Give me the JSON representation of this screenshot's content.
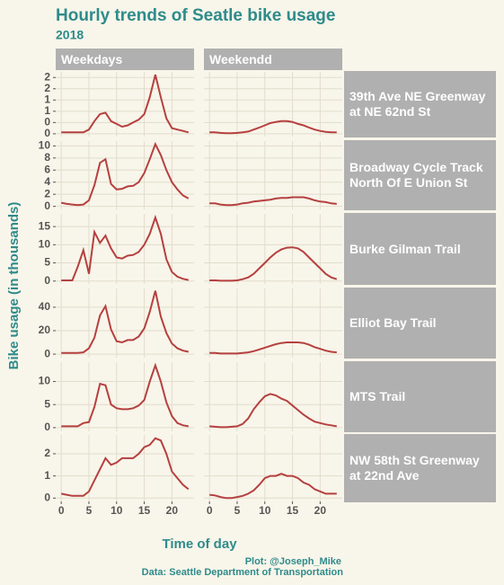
{
  "chart_data": {
    "type": "line",
    "title": "Hourly trends of Seatle bike usage",
    "subtitle": "2018",
    "xlabel": "Time of day",
    "ylabel": "Bike usage (in thousands)",
    "caption": [
      "Plot: @Joseph_Mike",
      "Data: Seattle Department of Transportation"
    ],
    "columns": [
      "Weekdays",
      "Weekendd"
    ],
    "x": [
      0,
      1,
      2,
      3,
      4,
      5,
      6,
      7,
      8,
      9,
      10,
      11,
      12,
      13,
      14,
      15,
      16,
      17,
      18,
      19,
      20,
      21,
      22,
      23
    ],
    "xlim": [
      -1,
      24
    ],
    "xticks": [
      0,
      5,
      10,
      15,
      20
    ],
    "color": "#b5403f",
    "grid": true,
    "rows": [
      {
        "name": "39th Ave NE Greenway at NE 62nd St",
        "ylim": [
          -0.1,
          2.2
        ],
        "yticks": [
          0,
          {
            "value": 0.4,
            "label": "0"
          },
          {
            "value": 0.8,
            "label": "1"
          },
          {
            "value": 1.2,
            "label": "1"
          },
          {
            "value": 1.6,
            "label": "2"
          },
          {
            "value": 2.0,
            "label": "2"
          }
        ],
        "values": [
          [
            0.05,
            0.05,
            0.05,
            0.05,
            0.05,
            0.15,
            0.45,
            0.7,
            0.75,
            0.45,
            0.35,
            0.25,
            0.3,
            0.4,
            0.5,
            0.7,
            1.3,
            2.1,
            1.3,
            0.55,
            0.2,
            0.15,
            0.1,
            0.05
          ],
          [
            0.05,
            0.05,
            0.03,
            0.02,
            0.02,
            0.03,
            0.05,
            0.08,
            0.15,
            0.22,
            0.3,
            0.38,
            0.42,
            0.45,
            0.45,
            0.42,
            0.35,
            0.3,
            0.22,
            0.15,
            0.1,
            0.07,
            0.05,
            0.05
          ]
        ]
      },
      {
        "name": "Broadway Cycle Track North Of E Union St",
        "ylim": [
          -0.5,
          10.8
        ],
        "yticks": [
          0,
          2,
          4,
          6,
          8,
          10
        ],
        "values": [
          [
            0.6,
            0.4,
            0.3,
            0.2,
            0.3,
            1,
            3.5,
            7.2,
            7.8,
            3.7,
            2.8,
            2.9,
            3.3,
            3.4,
            4,
            5.5,
            7.8,
            10.3,
            8.5,
            6,
            4,
            2.8,
            1.8,
            1.3
          ],
          [
            0.5,
            0.5,
            0.3,
            0.2,
            0.2,
            0.3,
            0.5,
            0.6,
            0.8,
            0.9,
            1,
            1.1,
            1.3,
            1.4,
            1.4,
            1.5,
            1.5,
            1.5,
            1.3,
            1,
            0.8,
            0.7,
            0.5,
            0.4
          ]
        ]
      },
      {
        "name": "Burke Gilman Trail",
        "ylim": [
          -0.8,
          18.5
        ],
        "yticks": [
          0,
          5,
          10,
          15
        ],
        "values": [
          [
            0.2,
            0.2,
            0.2,
            4,
            8.5,
            2,
            13.5,
            10.5,
            12.5,
            9,
            6.5,
            6.2,
            7,
            7.2,
            8,
            10,
            13,
            17.5,
            13,
            6,
            2.5,
            1.2,
            0.6,
            0.3
          ],
          [
            0.2,
            0.2,
            0.1,
            0.1,
            0.1,
            0.2,
            0.5,
            1,
            2,
            3.5,
            5,
            6.5,
            7.8,
            8.7,
            9.2,
            9.3,
            9,
            8,
            6.5,
            5,
            3.5,
            2,
            1,
            0.5
          ]
        ]
      },
      {
        "name": "Elliot Bay Trail",
        "ylim": [
          -3,
          56
        ],
        "yticks": [
          0,
          20,
          40
        ],
        "values": [
          [
            1,
            1,
            1,
            1,
            1.5,
            5,
            14,
            33,
            41,
            21,
            11,
            10,
            12,
            12,
            15,
            22,
            36,
            54,
            32,
            18,
            9,
            5,
            3,
            2
          ],
          [
            1,
            1,
            0.5,
            0.5,
            0.5,
            0.5,
            1,
            1.5,
            2.5,
            4,
            5.5,
            7,
            8.5,
            9.5,
            10,
            10,
            10,
            9.5,
            8,
            6,
            4.5,
            3,
            2,
            1.5
          ]
        ]
      },
      {
        "name": "MTS Trail",
        "ylim": [
          -0.8,
          14.2
        ],
        "yticks": [
          0,
          5,
          10
        ],
        "values": [
          [
            0.3,
            0.3,
            0.3,
            0.3,
            1,
            1.2,
            4.5,
            9.5,
            9.2,
            5,
            4.2,
            4,
            4,
            4.2,
            4.8,
            6,
            10,
            13.5,
            10,
            5.5,
            2.5,
            1,
            0.5,
            0.3
          ],
          [
            0.3,
            0.2,
            0.1,
            0.1,
            0.2,
            0.3,
            0.8,
            2,
            4,
            5.5,
            6.8,
            7.3,
            7,
            6.3,
            5.8,
            4.8,
            3.8,
            2.8,
            2,
            1.3,
            1,
            0.7,
            0.5,
            0.3
          ]
        ]
      },
      {
        "name": "NW 58th St Greenway at 22nd Ave",
        "ylim": [
          -0.15,
          2.85
        ],
        "yticks": [
          0,
          1,
          2
        ],
        "values": [
          [
            0.2,
            0.15,
            0.1,
            0.1,
            0.1,
            0.3,
            0.8,
            1.3,
            1.8,
            1.5,
            1.6,
            1.8,
            1.8,
            1.8,
            2,
            2.3,
            2.4,
            2.7,
            2.6,
            2,
            1.2,
            0.9,
            0.6,
            0.4
          ],
          [
            0.15,
            0.12,
            0.05,
            0,
            0,
            0.05,
            0.1,
            0.2,
            0.35,
            0.6,
            0.9,
            1,
            1,
            1.1,
            1,
            1,
            0.9,
            0.7,
            0.6,
            0.4,
            0.3,
            0.2,
            0.2,
            0.2
          ]
        ]
      }
    ]
  }
}
